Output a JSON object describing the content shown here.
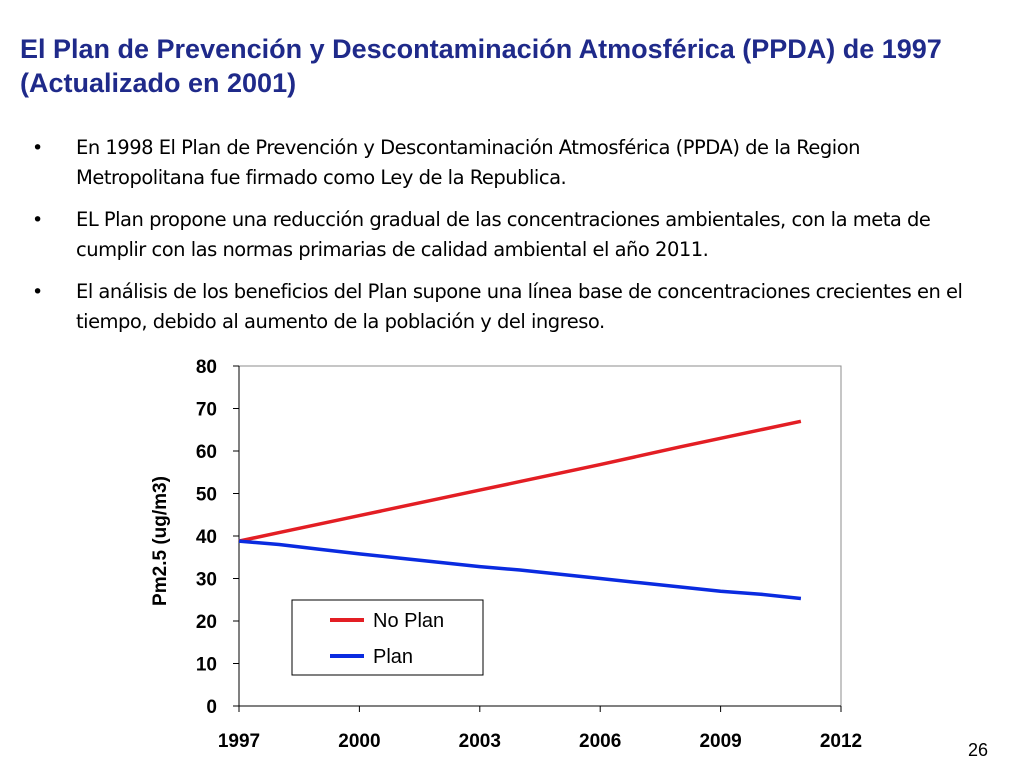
{
  "slide": {
    "title": "El Plan de Prevención y Descontaminación Atmosférica (PPDA) de 1997  (Actualizado en 2001)",
    "bullets": [
      "En 1998 El Plan de Prevención y Descontaminación Atmosférica (PPDA) de la Region Metropolitana fue firmado como Ley de la Republica.",
      "EL Plan propone una reducción gradual de las concentraciones ambientales, con la meta de cumplir con las normas primarias de calidad ambiental el año 2011.",
      "El análisis de los beneficios del Plan supone una línea base de concentraciones crecientes en el tiempo, debido al aumento de la población y del ingreso."
    ],
    "bullet_symbol": "•",
    "page_number": "26"
  },
  "chart_data": {
    "type": "line",
    "title": "",
    "xlabel": "",
    "ylabel": "Pm2.5 (ug/m3)",
    "xlim": [
      1997,
      2012
    ],
    "ylim": [
      0,
      80
    ],
    "xticks": [
      1997,
      2000,
      2003,
      2006,
      2009,
      2012
    ],
    "yticks": [
      0,
      10,
      20,
      30,
      40,
      50,
      60,
      70,
      80
    ],
    "grid": false,
    "legend": "bottom-left",
    "series": [
      {
        "name": "No Plan",
        "color": "#e31e24",
        "x": [
          1997,
          1998,
          1999,
          2000,
          2001,
          2002,
          2003,
          2004,
          2005,
          2006,
          2007,
          2008,
          2009,
          2010,
          2011
        ],
        "values": [
          38.8,
          40.8,
          42.8,
          44.8,
          46.8,
          48.8,
          50.8,
          52.8,
          54.8,
          56.8,
          58.9,
          61.0,
          63.0,
          65.0,
          67.0
        ]
      },
      {
        "name": "Plan",
        "color": "#0a2be0",
        "x": [
          1997,
          1998,
          1999,
          2000,
          2001,
          2002,
          2003,
          2004,
          2005,
          2006,
          2007,
          2008,
          2009,
          2010,
          2011
        ],
        "values": [
          38.8,
          38.0,
          36.9,
          35.8,
          34.8,
          33.8,
          32.8,
          32.0,
          31.0,
          30.0,
          29.0,
          28.0,
          27.0,
          26.3,
          25.3
        ]
      }
    ]
  }
}
